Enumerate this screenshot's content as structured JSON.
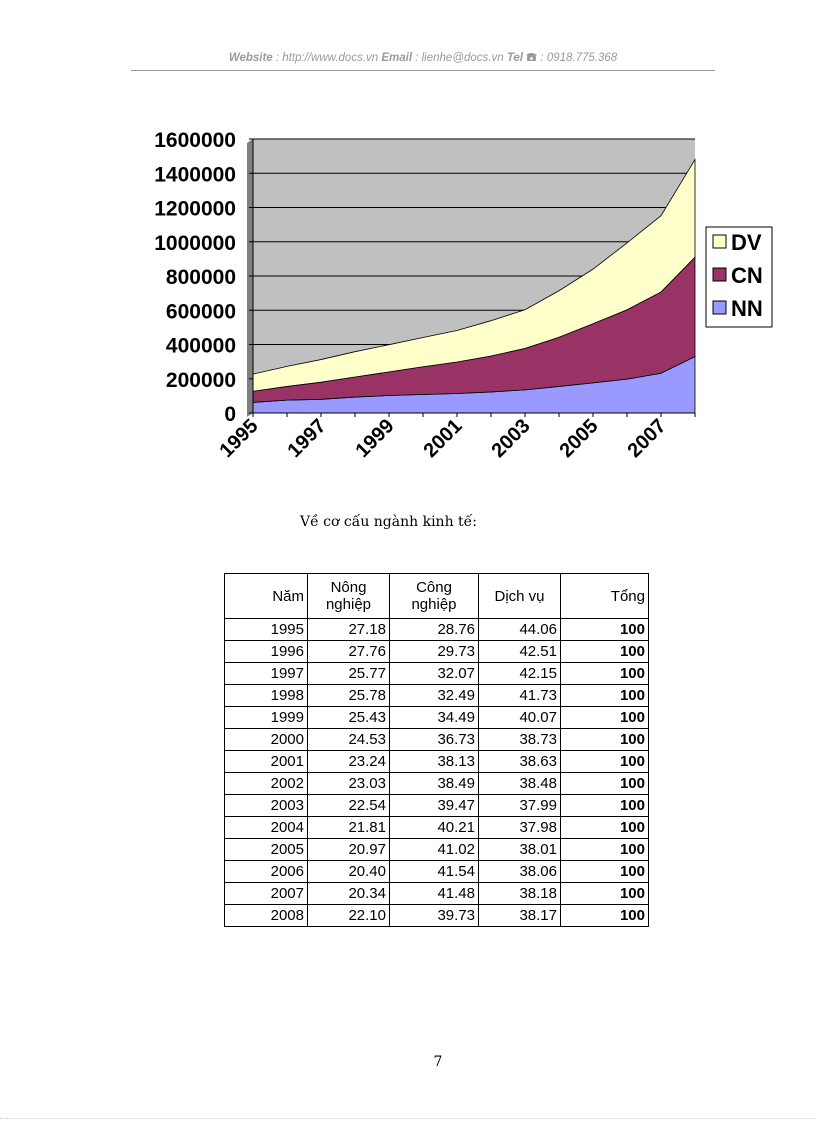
{
  "header": {
    "website_label": "Website",
    "website_value": " : http://www.docs.vn ",
    "email_label": "Email",
    "email_value": " : lienhe@docs.vn ",
    "tel_label": "Tel",
    "tel_icon": "phone-icon",
    "tel_value": " : 0918.775.368"
  },
  "chart_data": {
    "type": "area",
    "stacked": true,
    "title": "",
    "xlabel": "",
    "ylabel": "",
    "ylim": [
      0,
      1600000
    ],
    "grid": true,
    "legend_placement": "right",
    "x": [
      1995,
      1996,
      1997,
      1998,
      1999,
      2000,
      2001,
      2002,
      2003,
      2004,
      2005,
      2006,
      2007,
      2008
    ],
    "x_tick_labels": [
      "1995",
      "1997",
      "1999",
      "2001",
      "2003",
      "2005",
      "2007"
    ],
    "y_tick_labels": [
      "0",
      "200000",
      "400000",
      "600000",
      "800000",
      "1000000",
      "1200000",
      "1400000",
      "1600000"
    ],
    "series": [
      {
        "name": "NN",
        "color": "#9999ff",
        "values": [
          62000,
          75000,
          80000,
          93000,
          102000,
          108000,
          114000,
          123000,
          135000,
          155000,
          176000,
          198000,
          232000,
          330000
        ]
      },
      {
        "name": "CN",
        "color": "#993366",
        "values": [
          65000,
          80000,
          100000,
          117000,
          138000,
          162000,
          184000,
          210000,
          242000,
          287000,
          345000,
          405000,
          475000,
          580000
        ]
      },
      {
        "name": "DV",
        "color": "#ffffcc",
        "values": [
          100000,
          117000,
          132000,
          148000,
          159000,
          171000,
          184000,
          206000,
          226000,
          272000,
          319000,
          390000,
          445000,
          570000
        ]
      }
    ],
    "colors": {
      "plot_bg": "#c0c0c0",
      "gridline": "#000000"
    }
  },
  "caption": "Về cơ cấu ngành kinh tế:",
  "table": {
    "headers": [
      "Năm",
      "Nông nghiệp",
      "Công nghiệp",
      "Dịch vụ",
      "Tổng"
    ],
    "rows": [
      [
        "1995",
        "27.18",
        "28.76",
        "44.06",
        "100"
      ],
      [
        "1996",
        "27.76",
        "29.73",
        "42.51",
        "100"
      ],
      [
        "1997",
        "25.77",
        "32.07",
        "42.15",
        "100"
      ],
      [
        "1998",
        "25.78",
        "32.49",
        "41.73",
        "100"
      ],
      [
        "1999",
        "25.43",
        "34.49",
        "40.07",
        "100"
      ],
      [
        "2000",
        "24.53",
        "36.73",
        "38.73",
        "100"
      ],
      [
        "2001",
        "23.24",
        "38.13",
        "38.63",
        "100"
      ],
      [
        "2002",
        "23.03",
        "38.49",
        "38.48",
        "100"
      ],
      [
        "2003",
        "22.54",
        "39.47",
        "37.99",
        "100"
      ],
      [
        "2004",
        "21.81",
        "40.21",
        "37.98",
        "100"
      ],
      [
        "2005",
        "20.97",
        "41.02",
        "38.01",
        "100"
      ],
      [
        "2006",
        "20.40",
        "41.54",
        "38.06",
        "100"
      ],
      [
        "2007",
        "20.34",
        "41.48",
        "38.18",
        "100"
      ],
      [
        "2008",
        "22.10",
        "39.73",
        "38.17",
        "100"
      ]
    ]
  },
  "page_number": "7"
}
